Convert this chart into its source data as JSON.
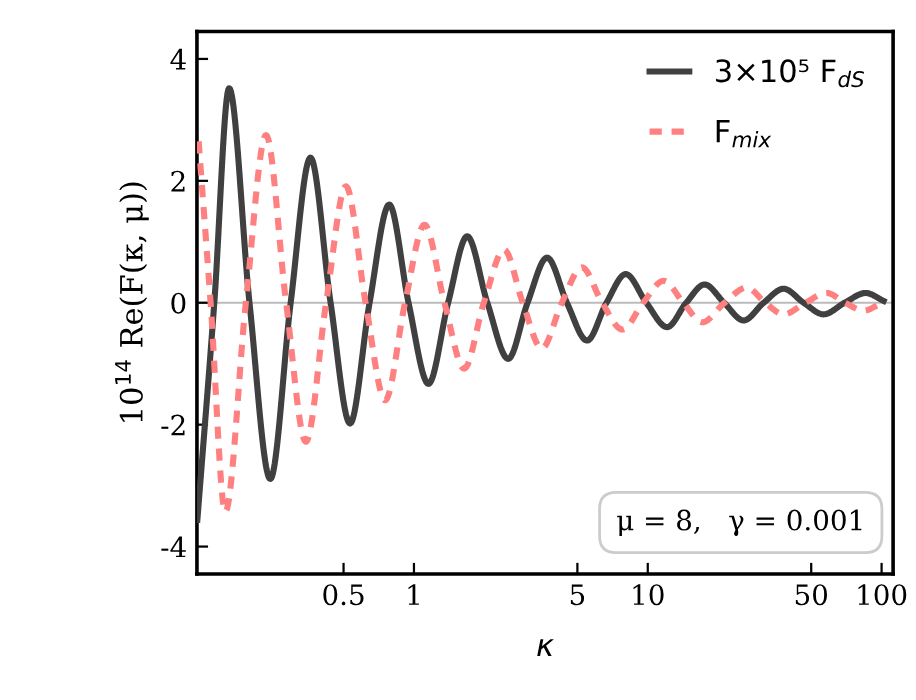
{
  "chart_data": {
    "type": "line",
    "xlabel": "κ",
    "ylabel": "10$^{14}$ Re(F(κ, μ))",
    "log": "x",
    "xlim": [
      0.118,
      112
    ],
    "ylim": [
      -4.45,
      4.45
    ],
    "xticks": [
      0.5,
      1,
      5,
      10,
      50,
      100
    ],
    "yticks": [
      -4,
      -2,
      0,
      2,
      4
    ],
    "grid": false,
    "legend": "top right",
    "marker": "none",
    "ref_lines": [
      {
        "axis": "y",
        "value": 0,
        "color": "#bbbbbb"
      }
    ],
    "annotations": [
      "μ = 8,   γ = 0.001"
    ],
    "series": [
      {
        "name": "3×10⁵ F$_{dS}$",
        "color": "#404040",
        "line_style": "solid",
        "x": [
          0.1185,
          0.14,
          0.162,
          0.198,
          0.243,
          0.297,
          0.361,
          0.44,
          0.533,
          0.646,
          0.784,
          0.948,
          1.154,
          1.4,
          1.69,
          2.06,
          2.53,
          3.06,
          3.71,
          4.51,
          5.5,
          6.66,
          8.05,
          9.86,
          12.1,
          14.6,
          17.5,
          21.2,
          25.7,
          31.3,
          38.1,
          46.4,
          56.5,
          69.5,
          85.5,
          102
        ],
        "values": [
          -3.56,
          0,
          3.52,
          0,
          -2.89,
          0,
          2.38,
          0,
          -1.98,
          0,
          1.61,
          0,
          -1.33,
          0,
          1.09,
          0,
          -0.92,
          0,
          0.74,
          0,
          -0.62,
          0,
          0.47,
          0,
          -0.4,
          0,
          0.3,
          0,
          -0.29,
          0,
          0.23,
          0,
          -0.19,
          0,
          0.16,
          0.03
        ]
      },
      {
        "name": "F$_{mix}$",
        "color": "#ff8080",
        "line_style": "dashed",
        "x": [
          0.12,
          0.135,
          0.156,
          0.191,
          0.233,
          0.284,
          0.345,
          0.421,
          0.512,
          0.621,
          0.753,
          0.916,
          1.11,
          1.35,
          1.64,
          1.99,
          2.43,
          2.92,
          3.52,
          4.29,
          5.23,
          6.38,
          7.79,
          9.55,
          11.7,
          14.2,
          17.1,
          21.3,
          26.5,
          31.8,
          38.1,
          47.2,
          58.3,
          69.8,
          83.8,
          98.6
        ],
        "values": [
          2.65,
          0,
          -3.43,
          0,
          2.75,
          0,
          -2.28,
          0,
          1.91,
          0,
          -1.6,
          0,
          1.28,
          0,
          -1.08,
          0,
          0.87,
          0,
          -0.75,
          0,
          0.58,
          0,
          -0.44,
          0,
          0.36,
          0,
          -0.32,
          0,
          0.25,
          0,
          -0.19,
          0,
          0.16,
          0,
          -0.13,
          -0.02
        ]
      }
    ]
  }
}
